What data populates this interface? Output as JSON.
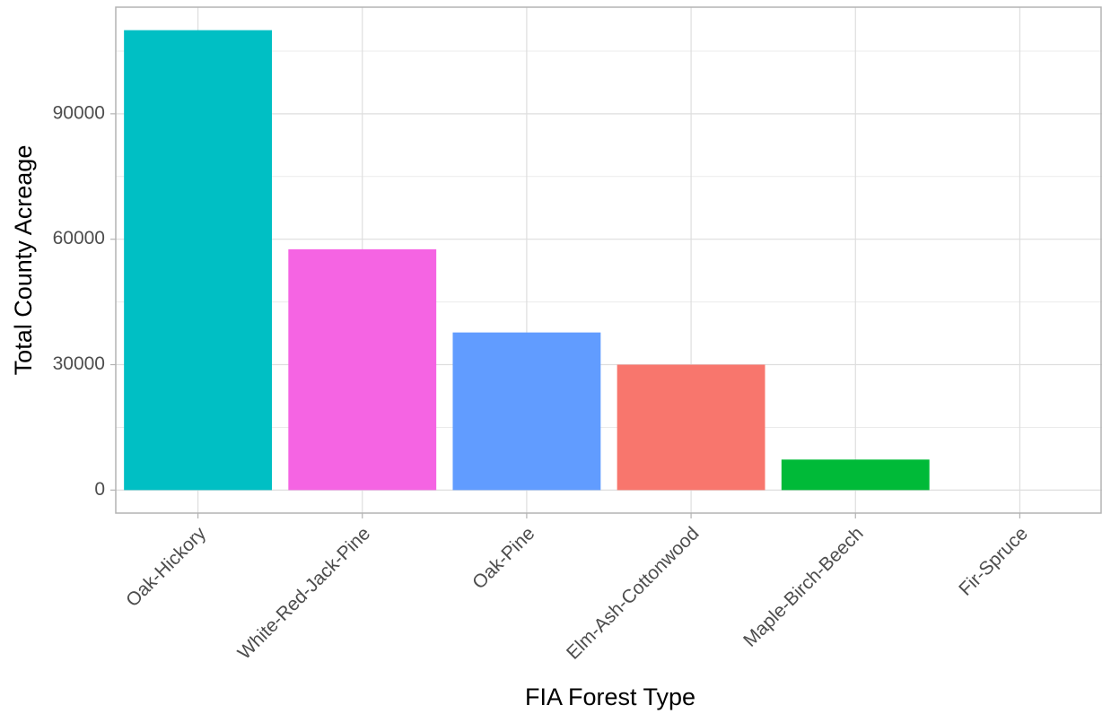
{
  "chart_data": {
    "type": "bar",
    "x_label": "FIA Forest Type",
    "y_label": "Total County Acreage",
    "categories": [
      "Oak-Hickory",
      "White-Red-Jack-Pine",
      "Oak-Pine",
      "Elm-Ash-Cottonwood",
      "Maple-Birch-Beech",
      "Fir-Spruce"
    ],
    "values": [
      110000,
      57600,
      37700,
      30000,
      7300,
      0
    ],
    "colors": [
      "#00BFC4",
      "#F564E3",
      "#619CFF",
      "#F8766D",
      "#00BA38",
      "#B79F00"
    ],
    "ylim": [
      -5500,
      115500
    ],
    "yticks": [
      0,
      30000,
      60000,
      90000
    ],
    "grid": true
  }
}
